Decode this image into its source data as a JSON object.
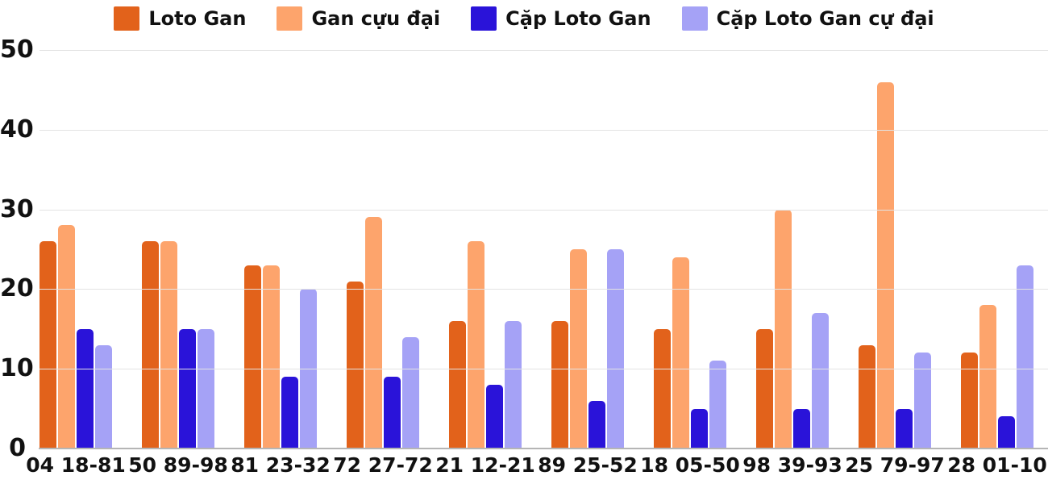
{
  "chart_data": {
    "type": "bar",
    "title": "",
    "xlabel": "",
    "ylabel": "",
    "categories": [
      "04 18-81",
      "50 89-98",
      "81 23-32",
      "72 27-72",
      "21 12-21",
      "89 25-52",
      "18 05-50",
      "98 39-93",
      "25 79-97",
      "28 01-10"
    ],
    "series": [
      {
        "name": "Loto Gan",
        "color": "#e2621b",
        "values": [
          26,
          26,
          23,
          21,
          16,
          16,
          15,
          15,
          13,
          12
        ]
      },
      {
        "name": "Gan cựu đại",
        "color": "#fda46c",
        "values": [
          28,
          26,
          23,
          29,
          26,
          25,
          24,
          30,
          46,
          18
        ]
      },
      {
        "name": "Cặp Loto Gan",
        "color": "#2a13d9",
        "values": [
          15,
          15,
          9,
          9,
          8,
          6,
          5,
          5,
          5,
          4
        ]
      },
      {
        "name": "Cặp Loto Gan cự đại",
        "color": "#a5a2f6",
        "values": [
          13,
          15,
          20,
          14,
          16,
          25,
          11,
          17,
          12,
          23
        ]
      }
    ],
    "y_axis": {
      "min": 0,
      "max": 50,
      "tick_step": 10,
      "ticks": [
        0,
        10,
        20,
        30,
        40,
        50
      ]
    },
    "legend_position": "top-center",
    "grid": true
  },
  "colors": {
    "background": "#ffffff",
    "gridline": "#e3e3e3",
    "axis_line": "#b5b5b5",
    "text": "#111111"
  }
}
